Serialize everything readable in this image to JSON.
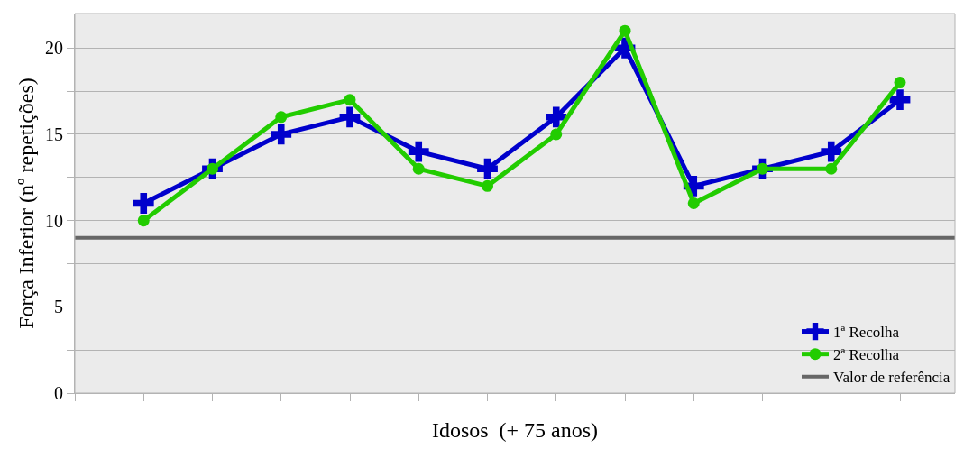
{
  "chart_data": {
    "type": "line",
    "xlabel": "Idosos  (+ 75 anos)",
    "ylabel": "Força Inferior (nº repetições)",
    "categories": [
      null,
      null,
      null,
      null,
      null,
      null,
      null,
      null,
      null,
      null,
      null,
      null
    ],
    "series": [
      {
        "name": "1ª Recolha",
        "color": "#0000cc",
        "marker": "cross",
        "values": [
          11,
          13,
          15,
          16,
          14,
          13,
          16,
          20,
          12,
          13,
          14,
          17
        ]
      },
      {
        "name": "2ª Recolha",
        "color": "#22cc00",
        "marker": "circle",
        "values": [
          10,
          13,
          16,
          17,
          13,
          12,
          15,
          21,
          11,
          13,
          13,
          18
        ]
      }
    ],
    "ref_lines": [
      {
        "axis": "y",
        "value": 9,
        "label": "Valor de referência",
        "color": "#666666",
        "line_style": "solid"
      }
    ],
    "ylim": [
      0,
      22
    ],
    "yticks": [
      0,
      {
        "value": 2.5,
        "label": null
      },
      5,
      {
        "value": 7.5,
        "label": null
      },
      10,
      {
        "value": 12.5,
        "label": null
      },
      15,
      {
        "value": 17.5,
        "label": null
      },
      20
    ],
    "grid": "y",
    "legend": "bottom right",
    "line_style": "solid"
  }
}
